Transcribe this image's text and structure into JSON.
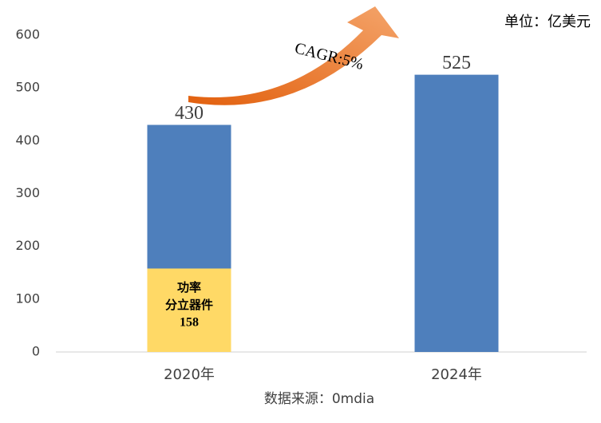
{
  "chart_data": {
    "type": "bar",
    "unit": "单位：亿美元",
    "annotation": "CAGR:5%",
    "source": "数据来源：0mdia",
    "categories": [
      "2020年",
      "2024年"
    ],
    "series": [
      {
        "color": "#4e7fbc",
        "values": [
          430,
          525
        ]
      },
      {
        "label": [
          "功率",
          "分立器件"
        ],
        "color": "#ffd966",
        "values": [
          158,
          null
        ]
      }
    ],
    "ylim": [
      0,
      600
    ],
    "yticks": [
      0,
      100,
      200,
      300,
      400,
      500,
      600
    ],
    "grid": false
  }
}
